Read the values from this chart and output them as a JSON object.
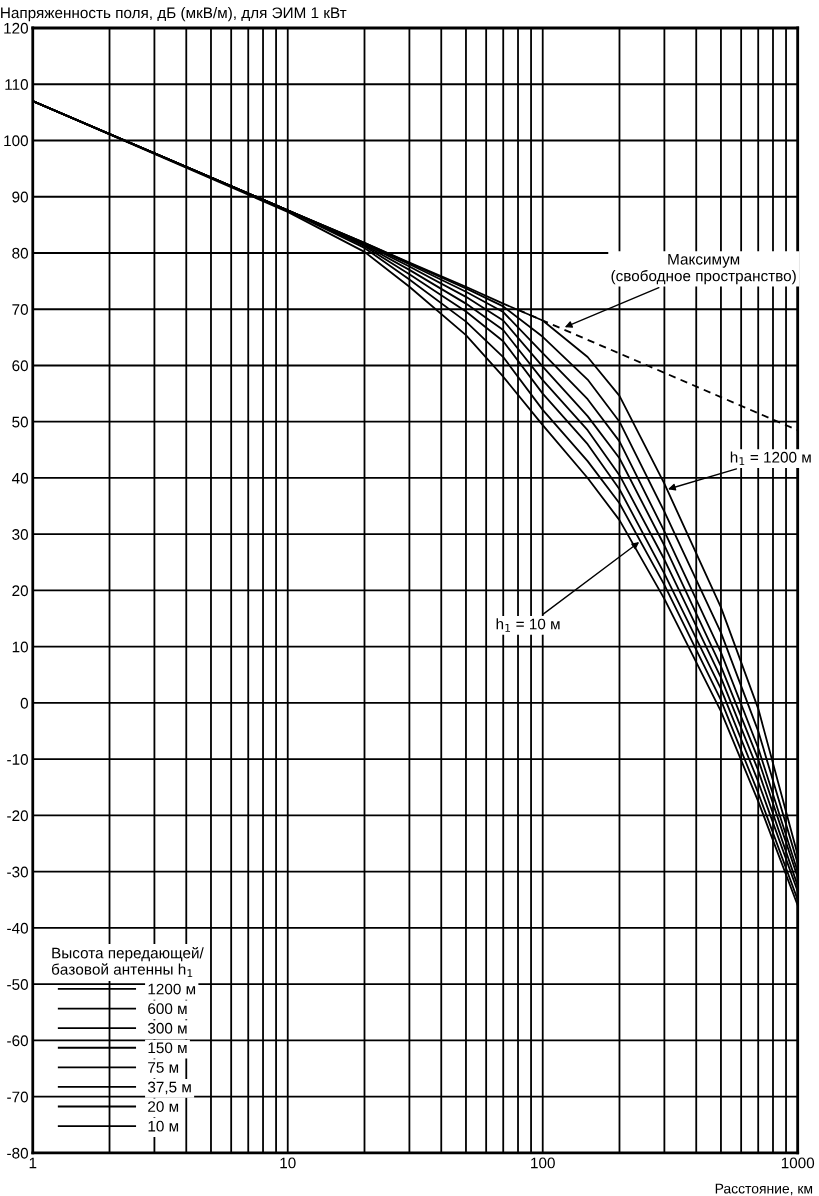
{
  "chart_data": {
    "type": "line",
    "ylabel": "Напряженность поля, дБ (мкВ/м), для ЭИМ 1 кВт",
    "xlabel": "Расстояние, км",
    "legend_title": "Высота передающей/\nбазовой антенны h$_{1}$",
    "legend": "bottom left",
    "log": "x",
    "grid": true,
    "marker": "none",
    "xlim": [
      1,
      1000
    ],
    "xticks": [
      1,
      {
        "value": 2,
        "label": null
      },
      {
        "value": 3,
        "label": null
      },
      {
        "value": 4,
        "label": null
      },
      {
        "value": 5,
        "label": null
      },
      {
        "value": 6,
        "label": null
      },
      {
        "value": 7,
        "label": null
      },
      {
        "value": 8,
        "label": null
      },
      {
        "value": 9,
        "label": null
      },
      10,
      {
        "value": 20,
        "label": null
      },
      {
        "value": 30,
        "label": null
      },
      {
        "value": 40,
        "label": null
      },
      {
        "value": 50,
        "label": null
      },
      {
        "value": 60,
        "label": null
      },
      {
        "value": 70,
        "label": null
      },
      {
        "value": 80,
        "label": null
      },
      {
        "value": 90,
        "label": null
      },
      100,
      {
        "value": 200,
        "label": null
      },
      {
        "value": 300,
        "label": null
      },
      {
        "value": 400,
        "label": null
      },
      {
        "value": 500,
        "label": null
      },
      {
        "value": 600,
        "label": null
      },
      {
        "value": 700,
        "label": null
      },
      {
        "value": 800,
        "label": null
      },
      {
        "value": 900,
        "label": null
      },
      1000
    ],
    "ylim": [
      -80,
      120
    ],
    "yticks": [
      -80,
      -70,
      -60,
      -50,
      -40,
      -30,
      -20,
      -10,
      0,
      10,
      20,
      30,
      40,
      50,
      60,
      70,
      80,
      90,
      100,
      110,
      120
    ],
    "x": [
      1,
      10,
      20,
      30,
      50,
      70,
      100,
      150,
      200,
      300,
      500,
      700,
      1000
    ],
    "series": [
      {
        "name": "1200 м",
        "color": "#000000",
        "values": [
          107,
          87.6,
          81.8,
          78.3,
          74,
          71,
          68,
          61.5,
          54.6,
          39,
          17,
          -1,
          -27
        ]
      },
      {
        "name": "600 м",
        "color": "#000000",
        "values": [
          107,
          87.6,
          81.8,
          78.2,
          73.7,
          70.5,
          65.1,
          57.5,
          50,
          34,
          12.5,
          -5,
          -28.5
        ]
      },
      {
        "name": "300 м",
        "color": "#000000",
        "values": [
          107,
          87.6,
          81.7,
          78,
          73.1,
          69.5,
          62.2,
          54,
          46.5,
          30.5,
          9,
          -8,
          -30
        ]
      },
      {
        "name": "150 м",
        "color": "#000000",
        "values": [
          107,
          87.6,
          81.6,
          77.6,
          72.2,
          68,
          59.8,
          51,
          43.5,
          28,
          6.5,
          -10,
          -31
        ]
      },
      {
        "name": "75 м",
        "color": "#000000",
        "values": [
          107,
          87.6,
          81.4,
          77,
          71,
          66.3,
          57.4,
          48.5,
          40.5,
          25.5,
          4.5,
          -12,
          -32.5
        ]
      },
      {
        "name": "37,5 м",
        "color": "#000000",
        "values": [
          107,
          87.6,
          81.2,
          76.2,
          69.6,
          64.3,
          55,
          46,
          38,
          23,
          2.5,
          -14,
          -33.5
        ]
      },
      {
        "name": "20 м",
        "color": "#000000",
        "values": [
          107,
          87.5,
          80.9,
          75.3,
          67.8,
          61.5,
          52.1,
          43,
          35.5,
          21,
          0.5,
          -16,
          -35
        ]
      },
      {
        "name": "10 м",
        "color": "#000000",
        "values": [
          107,
          87.3,
          80.2,
          74,
          65.4,
          58,
          49.4,
          40,
          32.5,
          18.5,
          -1.5,
          -17.5,
          -36
        ]
      },
      {
        "color": "#000000",
        "line_style": "dashed",
        "x": [
          80,
          100,
          1000
        ],
        "values": [
          69.9,
          68,
          48.5
        ]
      }
    ],
    "annotations": [
      {
        "text": "Максимум\n(свободное пространство)",
        "x": 122,
        "y": 66.8
      },
      {
        "text": "h$_{1}$ = 1200 м",
        "x": 310,
        "y": 38
      },
      {
        "text": "h$_{1}$ = 10 м",
        "x": 239,
        "y": 28.6
      }
    ]
  }
}
